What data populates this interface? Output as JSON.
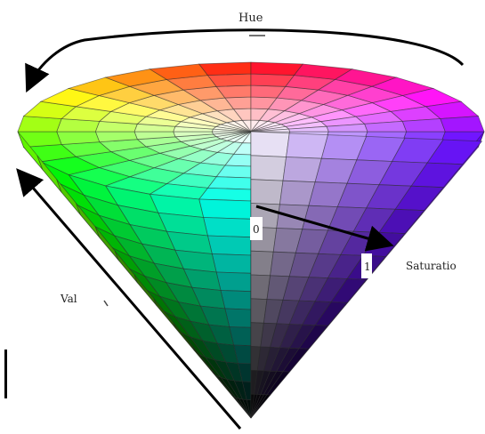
{
  "diagram": {
    "hue_label": "Hue",
    "saturation_label": "Saturatio",
    "value_label": "Val",
    "saturation_start": "0",
    "saturation_end": "1"
  }
}
